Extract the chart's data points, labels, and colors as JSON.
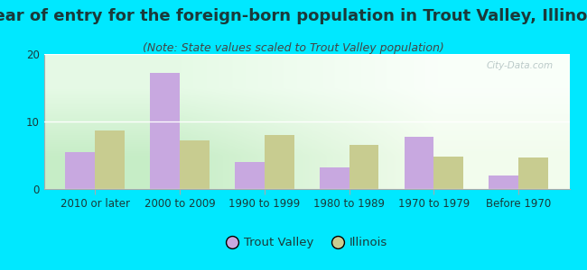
{
  "title": "Year of entry for the foreign-born population in Trout Valley, Illinois",
  "subtitle": "(Note: State values scaled to Trout Valley population)",
  "categories": [
    "2010 or later",
    "2000 to 2009",
    "1990 to 1999",
    "1980 to 1989",
    "1970 to 1979",
    "Before 1970"
  ],
  "trout_valley": [
    5.5,
    17.2,
    4.0,
    3.2,
    7.8,
    2.0
  ],
  "illinois": [
    8.7,
    7.2,
    8.0,
    6.5,
    4.8,
    4.7
  ],
  "trout_valley_color": "#c8a8e0",
  "illinois_color": "#c8cc90",
  "background_outer": "#00e8ff",
  "background_inner_bottom": "#c8e8c0",
  "background_inner_top": "#f0fff0",
  "ylim": [
    0,
    20
  ],
  "yticks": [
    0,
    10,
    20
  ],
  "bar_width": 0.35,
  "legend_trout_valley": "Trout Valley",
  "legend_illinois": "Illinois",
  "title_fontsize": 13,
  "subtitle_fontsize": 9,
  "tick_fontsize": 8.5,
  "legend_fontsize": 9.5,
  "title_color": "#1a3a3a",
  "subtitle_color": "#444444",
  "tick_color": "#1a3a3a"
}
